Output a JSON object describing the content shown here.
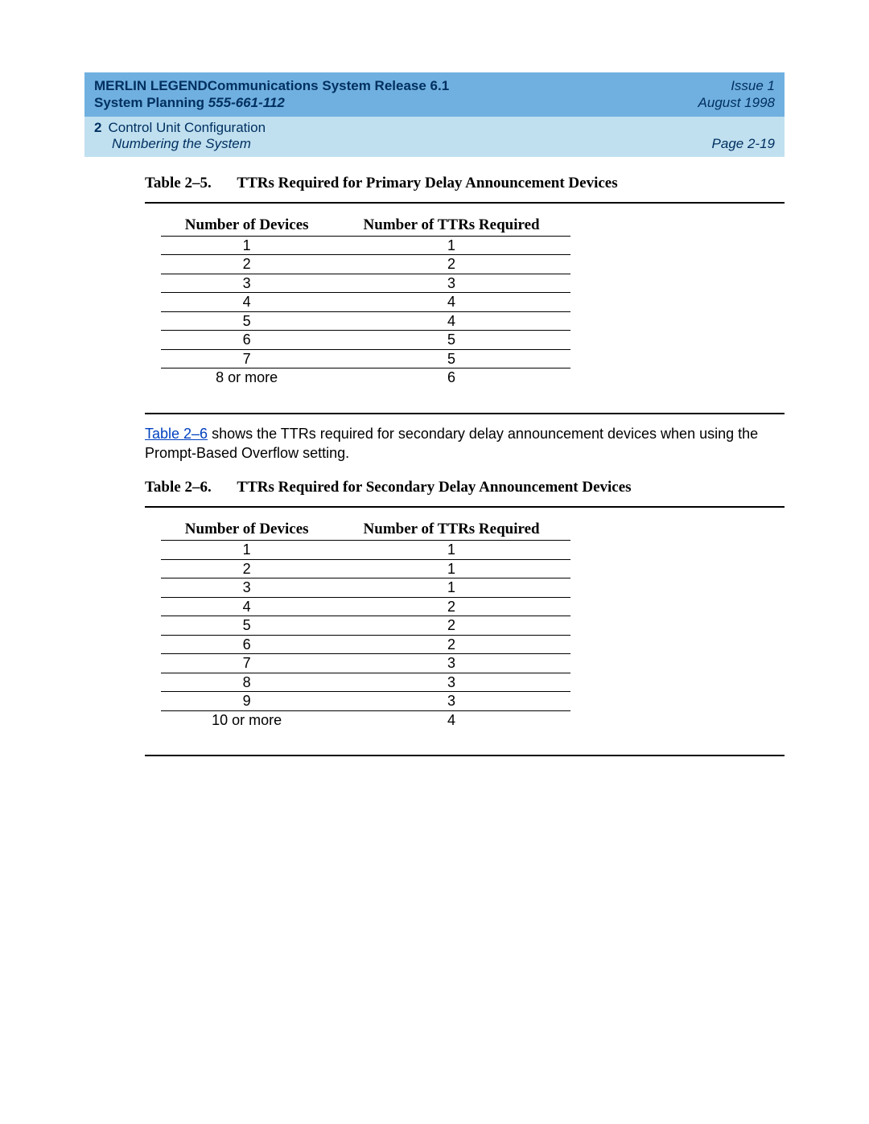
{
  "header": {
    "title_line1a": "MERLIN LEGEND",
    "title_line1b": "Communications System Release 6.1",
    "title_line2a": "System Planning  ",
    "title_line2b": "555-661-112",
    "issue": "Issue 1",
    "date": "August 1998",
    "chapter_num": "2",
    "chapter_title": "Control Unit Configuration",
    "section": "Numbering the System",
    "page": "Page 2-19"
  },
  "table1": {
    "caption_num": "Table 2–5.",
    "caption_text": "TTRs Required for Primary Delay Announcement Devices",
    "col1": "Number of Devices",
    "col2": "Number of TTRs Required",
    "rows": [
      {
        "d": "1",
        "t": "1"
      },
      {
        "d": "2",
        "t": "2"
      },
      {
        "d": "3",
        "t": "3"
      },
      {
        "d": "4",
        "t": "4"
      },
      {
        "d": "5",
        "t": "4"
      },
      {
        "d": "6",
        "t": "5"
      },
      {
        "d": "7",
        "t": "5"
      },
      {
        "d": "8 or more",
        "t": "6"
      }
    ]
  },
  "para": {
    "link_text": "Table 2–6",
    "rest": " shows the TTRs required for secondary delay announcement devices when using the Prompt-Based Overflow setting."
  },
  "table2": {
    "caption_num": "Table 2–6.",
    "caption_text": "TTRs Required for Secondary Delay Announcement Devices",
    "col1": "Number of Devices",
    "col2": "Number of TTRs Required",
    "rows": [
      {
        "d": "1",
        "t": "1"
      },
      {
        "d": "2",
        "t": "1"
      },
      {
        "d": "3",
        "t": "1"
      },
      {
        "d": "4",
        "t": "2"
      },
      {
        "d": "5",
        "t": "2"
      },
      {
        "d": "6",
        "t": "2"
      },
      {
        "d": "7",
        "t": "3"
      },
      {
        "d": "8",
        "t": "3"
      },
      {
        "d": "9",
        "t": "3"
      },
      {
        "d": "10 or more",
        "t": "4"
      }
    ]
  }
}
